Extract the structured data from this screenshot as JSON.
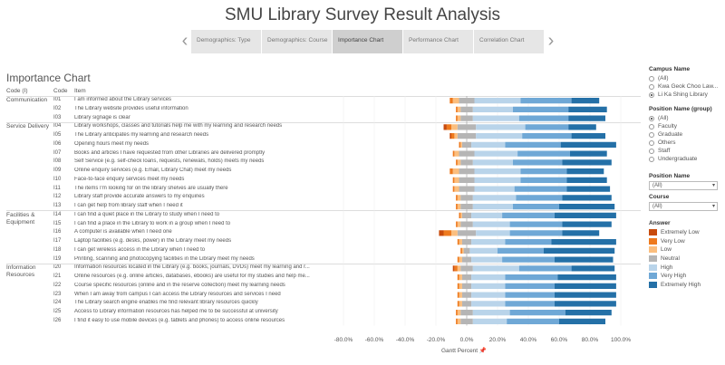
{
  "title": "SMU Library Survey Result Analysis",
  "tabs": [
    {
      "label": "Demographics: Type"
    },
    {
      "label": "Demographics: Course"
    },
    {
      "label": "Importance Chart"
    },
    {
      "label": "Performance Chart"
    },
    {
      "label": "Correlation Chart"
    }
  ],
  "active_tab": 2,
  "chart_title": "Importance Chart",
  "headers": {
    "category": "Code (I)",
    "code": "Code",
    "item": "Item"
  },
  "categories": [
    {
      "label": "Communication",
      "start": 0,
      "end": 2
    },
    {
      "label": "Service Delivery",
      "start": 3,
      "end": 12
    },
    {
      "label": "Facilities &\nEquipment",
      "start": 13,
      "end": 18
    },
    {
      "label": "Information\nResources",
      "start": 19,
      "end": 25
    }
  ],
  "rows": [
    {
      "code": "I01",
      "item": "I am informed about the Library services"
    },
    {
      "code": "I02",
      "item": "The Library website provides useful information"
    },
    {
      "code": "I03",
      "item": "Library signage is clear"
    },
    {
      "code": "I04",
      "item": "Library workshops, classes and tutorials help me with my learning and research needs"
    },
    {
      "code": "I05",
      "item": "The Library anticipates my learning and research needs"
    },
    {
      "code": "I06",
      "item": "Opening hours meet my needs"
    },
    {
      "code": "I07",
      "item": "Books and articles I have requested from other Libraries are delivered promptly"
    },
    {
      "code": "I08",
      "item": "Self Service (e.g. self-check loans, requests, renewals, holds) meets my needs"
    },
    {
      "code": "I09",
      "item": "Online enquiry services (e.g. Email, Library Chat) meet my needs"
    },
    {
      "code": "I10",
      "item": "Face-to-face enquiry services meet my needs"
    },
    {
      "code": "I11",
      "item": "The items I'm looking for on the library shelves are usually there"
    },
    {
      "code": "I12",
      "item": "Library staff provide accurate answers to my enquiries"
    },
    {
      "code": "I13",
      "item": "I can get help from library staff when I need it"
    },
    {
      "code": "I14",
      "item": "I can find a quiet place in the Library to study when I need to"
    },
    {
      "code": "I15",
      "item": "I can find a place in the Library to work in a group when I need to"
    },
    {
      "code": "I16",
      "item": "A computer is available when I need one"
    },
    {
      "code": "I17",
      "item": "Laptop facilities (e.g. desks, power) in the Library meet my needs"
    },
    {
      "code": "I18",
      "item": "I can get wireless access in the Library when I need to"
    },
    {
      "code": "I19",
      "item": "Printing, scanning and photocopying facilities in the Library meet my needs"
    },
    {
      "code": "I20",
      "item": "Information resources located in the Library (e.g. books, journals, DVDs) meet my learning and r..."
    },
    {
      "code": "I21",
      "item": "Online resources (e.g. online articles, databases, ebooks) are useful for my studies and help me..."
    },
    {
      "code": "I22",
      "item": "Course specific resources (online and in the reserve collection) meet my learning needs"
    },
    {
      "code": "I23",
      "item": "When I am away from campus I can access the Library resources and services I need"
    },
    {
      "code": "I24",
      "item": "The Library search engine enables me find relevant library resources quickly"
    },
    {
      "code": "I25",
      "item": "Access to Library information resources has helped me to be successful at university"
    },
    {
      "code": "I26",
      "item": "I find it easy to use mobile devices (e.g. tablets and phones) to access online resources"
    }
  ],
  "x_axis": {
    "title": "Gantt Percent",
    "ticks": [
      "-80.0%",
      "-60.0%",
      "-40.0%",
      "-20.0%",
      "0.0%",
      "20.0%",
      "40.0%",
      "60.0%",
      "80.0%",
      "100.0%"
    ]
  },
  "filters": {
    "campus": {
      "title": "Campus Name",
      "options": [
        "(All)",
        "Kwa Geok Choo Law...",
        "Li Ka Shing Library"
      ],
      "selected": 2
    },
    "position_group": {
      "title": "Position Name (group)",
      "options": [
        "(All)",
        "Faculty",
        "Graduate",
        "Others",
        "Staff",
        "Undergraduate"
      ],
      "selected": 0
    },
    "position": {
      "title": "Position Name",
      "value": "(All)"
    },
    "course": {
      "title": "Course",
      "value": "(All)"
    }
  },
  "legend": {
    "title": "Answer",
    "items": [
      {
        "label": "Extremely Low",
        "color": "#c84b0c"
      },
      {
        "label": "Very Low",
        "color": "#ee7a1e"
      },
      {
        "label": "Low",
        "color": "#fbbe7e"
      },
      {
        "label": "Neutral",
        "color": "#b5b5b5"
      },
      {
        "label": "High",
        "color": "#b9d4ea"
      },
      {
        "label": "Very High",
        "color": "#6fa8d6"
      },
      {
        "label": "Extremely High",
        "color": "#2470a7"
      }
    ]
  },
  "chart_data": {
    "type": "bar",
    "stacked": "diverging",
    "title": "Importance Chart",
    "xlabel": "Gantt Percent",
    "xlim": [
      -80,
      100
    ],
    "series_names": [
      "Extremely Low",
      "Very Low",
      "Low",
      "Neutral",
      "High",
      "Very High",
      "Extremely High"
    ],
    "categories": [
      "I01",
      "I02",
      "I03",
      "I04",
      "I05",
      "I06",
      "I07",
      "I08",
      "I09",
      "I10",
      "I11",
      "I12",
      "I13",
      "I14",
      "I15",
      "I16",
      "I17",
      "I18",
      "I19",
      "I20",
      "I21",
      "I22",
      "I23",
      "I24",
      "I25",
      "I26"
    ],
    "values": [
      [
        0,
        2,
        4,
        10,
        30,
        33,
        18
      ],
      [
        0,
        1,
        2,
        8,
        26,
        36,
        25
      ],
      [
        0,
        1,
        2,
        8,
        30,
        32,
        24
      ],
      [
        2,
        3,
        4,
        12,
        32,
        28,
        18
      ],
      [
        1,
        2,
        2,
        12,
        30,
        32,
        22
      ],
      [
        0,
        1,
        1,
        6,
        22,
        36,
        36
      ],
      [
        0,
        1,
        3,
        10,
        28,
        34,
        24
      ],
      [
        0,
        1,
        2,
        8,
        26,
        32,
        32
      ],
      [
        0,
        2,
        4,
        10,
        30,
        30,
        24
      ],
      [
        0,
        1,
        3,
        10,
        30,
        30,
        26
      ],
      [
        0,
        1,
        3,
        10,
        26,
        34,
        28
      ],
      [
        0,
        1,
        2,
        8,
        28,
        30,
        32
      ],
      [
        0,
        1,
        2,
        8,
        26,
        30,
        36
      ],
      [
        0,
        1,
        1,
        6,
        20,
        34,
        40
      ],
      [
        0,
        1,
        2,
        8,
        24,
        34,
        32
      ],
      [
        3,
        5,
        4,
        12,
        22,
        34,
        24
      ],
      [
        0,
        1,
        2,
        6,
        22,
        30,
        42
      ],
      [
        0,
        1,
        1,
        4,
        18,
        30,
        46
      ],
      [
        0,
        1,
        2,
        6,
        20,
        34,
        38
      ],
      [
        1,
        2,
        2,
        8,
        30,
        34,
        28
      ],
      [
        0,
        1,
        2,
        6,
        22,
        34,
        38
      ],
      [
        0,
        1,
        2,
        6,
        22,
        32,
        40
      ],
      [
        0,
        1,
        2,
        6,
        22,
        32,
        40
      ],
      [
        0,
        1,
        2,
        6,
        22,
        32,
        40
      ],
      [
        0,
        1,
        2,
        8,
        24,
        36,
        30
      ],
      [
        0,
        1,
        2,
        8,
        22,
        34,
        30
      ]
    ]
  }
}
